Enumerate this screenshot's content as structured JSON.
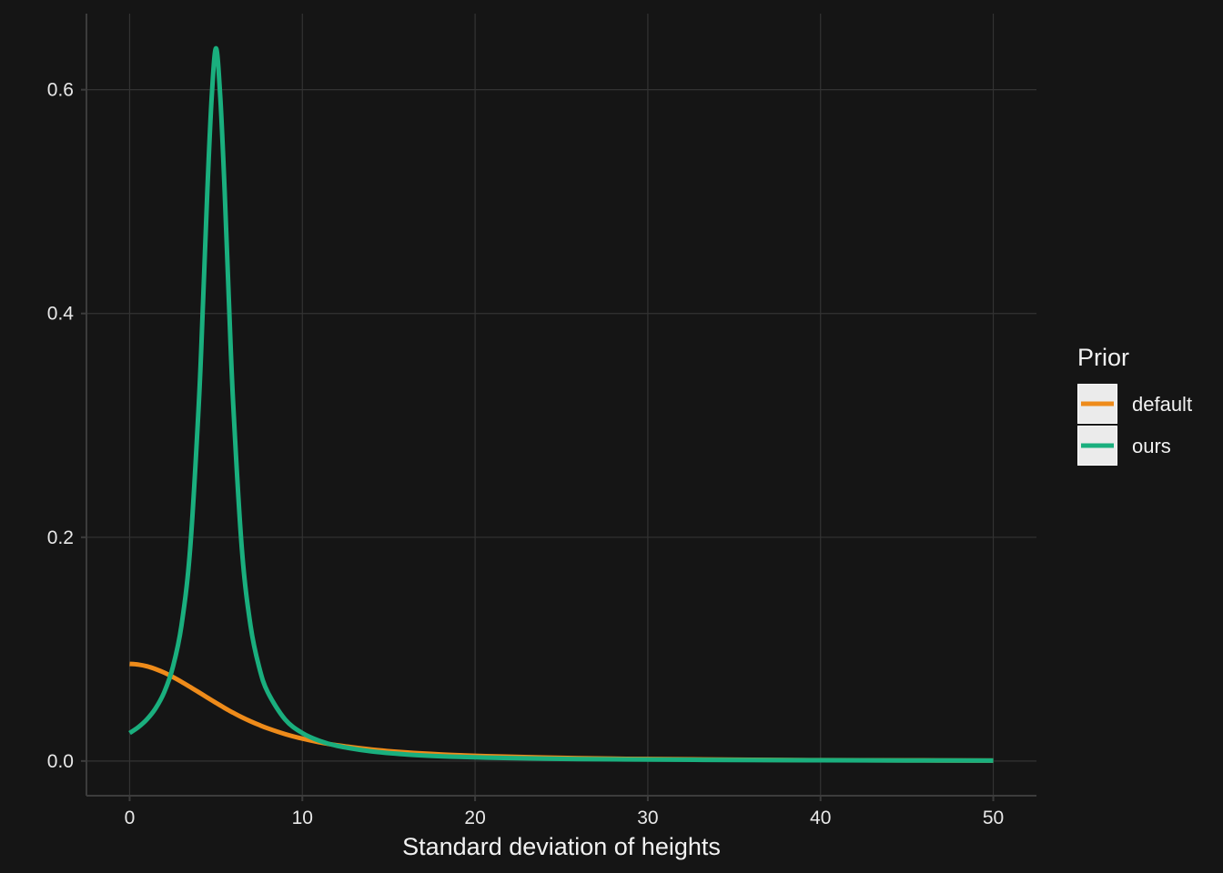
{
  "chart_data": {
    "type": "line",
    "title": "",
    "xlabel": "Standard deviation of heights",
    "ylabel": "",
    "xlim": [
      -2.5,
      52.5
    ],
    "ylim": [
      -0.031,
      0.668
    ],
    "x_ticks": [
      0,
      10,
      20,
      30,
      40,
      50
    ],
    "x_tick_labels": [
      "0",
      "10",
      "20",
      "30",
      "40",
      "50"
    ],
    "y_ticks": [
      0.0,
      0.2,
      0.4,
      0.6
    ],
    "y_tick_labels": [
      "0.0",
      "0.2",
      "0.4",
      "0.6"
    ],
    "grid": true,
    "legend": {
      "title": "Prior",
      "placement": "right"
    },
    "x": [
      0,
      0.5,
      1,
      1.5,
      2,
      2.5,
      3,
      3.5,
      4,
      4.25,
      4.5,
      4.75,
      5,
      5.25,
      5.5,
      5.75,
      6,
      6.5,
      7,
      7.5,
      8,
      9,
      10,
      11,
      12,
      14,
      16,
      18,
      20,
      22,
      25,
      28,
      30,
      35,
      40,
      45,
      50
    ],
    "series": [
      {
        "name": "default",
        "color": "#ee8b1a",
        "values": [
          0.0868,
          0.0862,
          0.0847,
          0.0822,
          0.079,
          0.0751,
          0.0708,
          0.0662,
          0.0615,
          0.0591,
          0.0567,
          0.0543,
          0.052,
          0.0497,
          0.0474,
          0.0452,
          0.0431,
          0.0391,
          0.0355,
          0.0322,
          0.0292,
          0.0241,
          0.02,
          0.0167,
          0.0141,
          0.0103,
          0.0077,
          0.0059,
          0.0047,
          0.0038,
          0.0028,
          0.0021,
          0.0018,
          0.0012,
          0.0008,
          0.0006,
          0.0004
        ]
      },
      {
        "name": "ours",
        "color": "#1aaf7e",
        "values": [
          0.025,
          0.0302,
          0.0372,
          0.047,
          0.0614,
          0.0838,
          0.121,
          0.189,
          0.318,
          0.41,
          0.51,
          0.593,
          0.637,
          0.593,
          0.51,
          0.41,
          0.318,
          0.189,
          0.121,
          0.0838,
          0.0614,
          0.0372,
          0.025,
          0.018,
          0.0136,
          0.0086,
          0.0059,
          0.0043,
          0.0033,
          0.0026,
          0.0019,
          0.0015,
          0.0013,
          0.0009,
          0.0007,
          0.0005,
          0.0004
        ]
      }
    ]
  }
}
